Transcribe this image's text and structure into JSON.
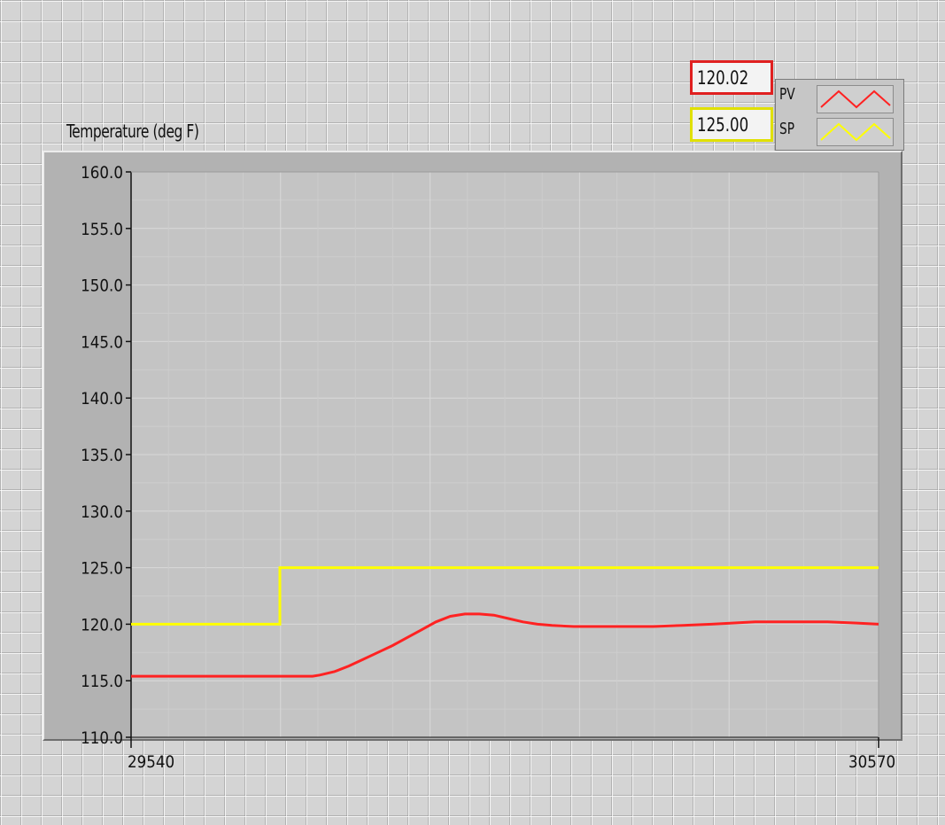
{
  "chart_data": {
    "type": "line",
    "title": "Temperature (deg F)",
    "xlim": [
      29540,
      30570
    ],
    "ylim": [
      110.0,
      160.0
    ],
    "x_ticks": [
      29540,
      30570
    ],
    "x_tick_labels": [
      "29540",
      "30570"
    ],
    "y_ticks": [
      110.0,
      115.0,
      120.0,
      125.0,
      130.0,
      135.0,
      140.0,
      145.0,
      150.0,
      155.0,
      160.0
    ],
    "y_tick_labels": [
      "110.0",
      "115.0",
      "120.0",
      "125.0",
      "130.0",
      "135.0",
      "140.0",
      "145.0",
      "150.0",
      "155.0",
      "160.0"
    ],
    "grid": true,
    "legend_position": "top-right",
    "series": [
      {
        "name": "PV",
        "color": "#ff2222",
        "indicator_value": "120.02",
        "x": [
          29540,
          29600,
          29660,
          29700,
          29720,
          29760,
          29790,
          29800,
          29820,
          29840,
          29860,
          29880,
          29900,
          29920,
          29940,
          29960,
          29980,
          30000,
          30020,
          30040,
          30060,
          30080,
          30100,
          30120,
          30150,
          30200,
          30260,
          30300,
          30340,
          30400,
          30450,
          30500,
          30540,
          30570
        ],
        "y": [
          115.4,
          115.4,
          115.4,
          115.4,
          115.4,
          115.4,
          115.4,
          115.5,
          115.8,
          116.3,
          116.9,
          117.5,
          118.1,
          118.8,
          119.5,
          120.2,
          120.7,
          120.9,
          120.9,
          120.8,
          120.5,
          120.2,
          120.0,
          119.9,
          119.8,
          119.8,
          119.8,
          119.9,
          120.0,
          120.2,
          120.2,
          120.2,
          120.1,
          120.0
        ]
      },
      {
        "name": "SP",
        "color": "#ffff00",
        "indicator_value": "125.00",
        "x": [
          29540,
          29745,
          29745,
          30570
        ],
        "y": [
          120.0,
          120.0,
          125.0,
          125.0
        ]
      }
    ]
  },
  "legend": {
    "pv_label": "PV",
    "sp_label": "SP",
    "pv_indicator_border": "#e02020",
    "sp_indicator_border": "#e0e000"
  }
}
